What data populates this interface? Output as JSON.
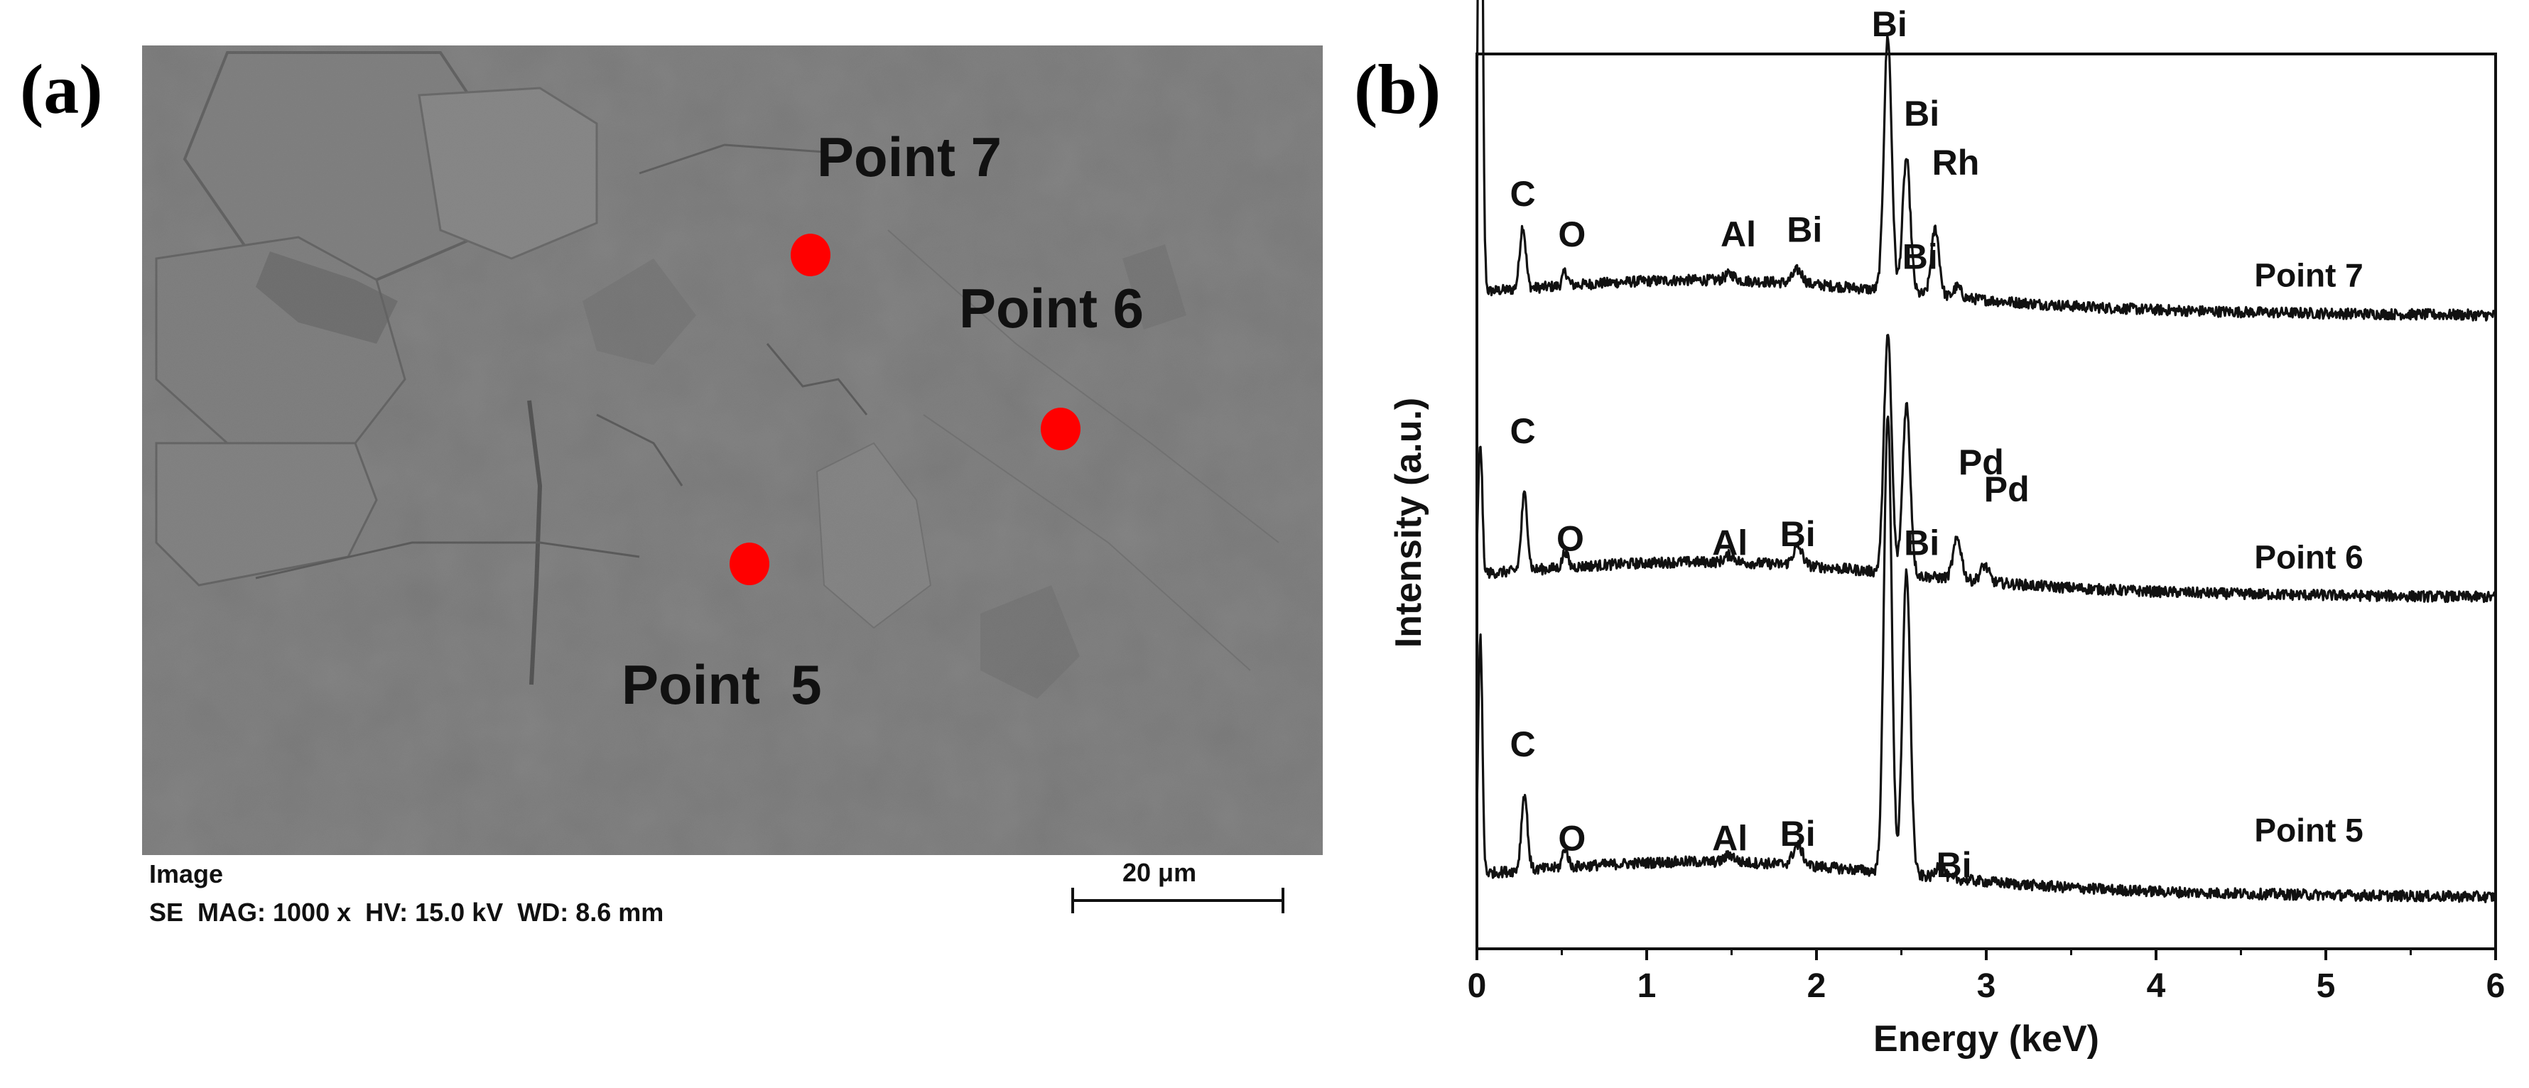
{
  "panel_a_label": "(a)",
  "panel_b_label": "(b)",
  "sem": {
    "point_labels": {
      "p7": "Point 7",
      "p6": "Point 6",
      "p5": "Point  5"
    },
    "marker_color": "#ff0000",
    "info_title": "Image",
    "info_params": "SE  MAG: 1000 x  HV: 15.0 kV  WD: 8.6 mm",
    "scale_label": "20 μm"
  },
  "chart_data": {
    "type": "line",
    "xlabel": "Energy (keV)",
    "ylabel": "Intensity (a.u.)",
    "xlim": [
      0,
      6
    ],
    "x_ticks": [
      0,
      1,
      2,
      3,
      4,
      5,
      6
    ],
    "y_ticks_shown": false,
    "grid": false,
    "line_color": "#111111",
    "series": [
      {
        "name": "Point 7",
        "baseline": 0.72,
        "peaks": [
          {
            "x": 0.02,
            "height": 0.72,
            "width": 0.018
          },
          {
            "x": 0.27,
            "height": 0.07,
            "width": 0.025
          },
          {
            "x": 0.52,
            "height": 0.015,
            "width": 0.022
          },
          {
            "x": 1.49,
            "height": 0.007,
            "width": 0.04
          },
          {
            "x": 1.89,
            "height": 0.015,
            "width": 0.04
          },
          {
            "x": 2.42,
            "height": 0.285,
            "width": 0.032
          },
          {
            "x": 2.53,
            "height": 0.15,
            "width": 0.032
          },
          {
            "x": 2.7,
            "height": 0.075,
            "width": 0.032
          },
          {
            "x": 2.83,
            "height": 0.012,
            "width": 0.03
          }
        ],
        "peak_labels": [
          {
            "text": "C",
            "x": 0.27
          },
          {
            "text": "O",
            "x": 0.56
          },
          {
            "text": "Al",
            "x": 1.54
          },
          {
            "text": "Bi",
            "x": 1.93
          },
          {
            "text": "Bi",
            "x": 2.43
          },
          {
            "text": "Bi",
            "x": 2.62
          },
          {
            "text": "Rh",
            "x": 2.82
          }
        ]
      },
      {
        "name": "Point 6",
        "baseline": 0.405,
        "peaks": [
          {
            "x": 0.02,
            "height": 0.16,
            "width": 0.018
          },
          {
            "x": 0.28,
            "height": 0.085,
            "width": 0.025
          },
          {
            "x": 0.52,
            "height": 0.018,
            "width": 0.022
          },
          {
            "x": 1.49,
            "height": 0.008,
            "width": 0.04
          },
          {
            "x": 1.89,
            "height": 0.02,
            "width": 0.04
          },
          {
            "x": 2.42,
            "height": 0.265,
            "width": 0.032
          },
          {
            "x": 2.53,
            "height": 0.19,
            "width": 0.032
          },
          {
            "x": 2.83,
            "height": 0.045,
            "width": 0.035
          },
          {
            "x": 2.99,
            "height": 0.018,
            "width": 0.035
          }
        ],
        "peak_labels": [
          {
            "text": "C",
            "x": 0.27
          },
          {
            "text": "O",
            "x": 0.55
          },
          {
            "text": "Al",
            "x": 1.49
          },
          {
            "text": "Bi",
            "x": 1.89
          },
          {
            "text": "Bi",
            "x": 2.61
          },
          {
            "text": "Pd",
            "x": 2.97
          },
          {
            "text": "Pd",
            "x": 3.12
          }
        ]
      },
      {
        "name": "Point 5",
        "baseline": 0.07,
        "peaks": [
          {
            "x": 0.02,
            "height": 0.28,
            "width": 0.018
          },
          {
            "x": 0.28,
            "height": 0.085,
            "width": 0.025
          },
          {
            "x": 0.52,
            "height": 0.022,
            "width": 0.022
          },
          {
            "x": 1.49,
            "height": 0.008,
            "width": 0.04
          },
          {
            "x": 1.89,
            "height": 0.022,
            "width": 0.04
          },
          {
            "x": 2.42,
            "height": 0.515,
            "width": 0.032
          },
          {
            "x": 2.53,
            "height": 0.34,
            "width": 0.032
          },
          {
            "x": 2.73,
            "height": 0.018,
            "width": 0.03
          }
        ],
        "peak_labels": [
          {
            "text": "C",
            "x": 0.27
          },
          {
            "text": "O",
            "x": 0.56
          },
          {
            "text": "Al",
            "x": 1.49
          },
          {
            "text": "Bi",
            "x": 1.89
          },
          {
            "text": "Bi",
            "x": 2.62
          },
          {
            "text": "Bi",
            "x": 2.81
          }
        ]
      }
    ]
  }
}
